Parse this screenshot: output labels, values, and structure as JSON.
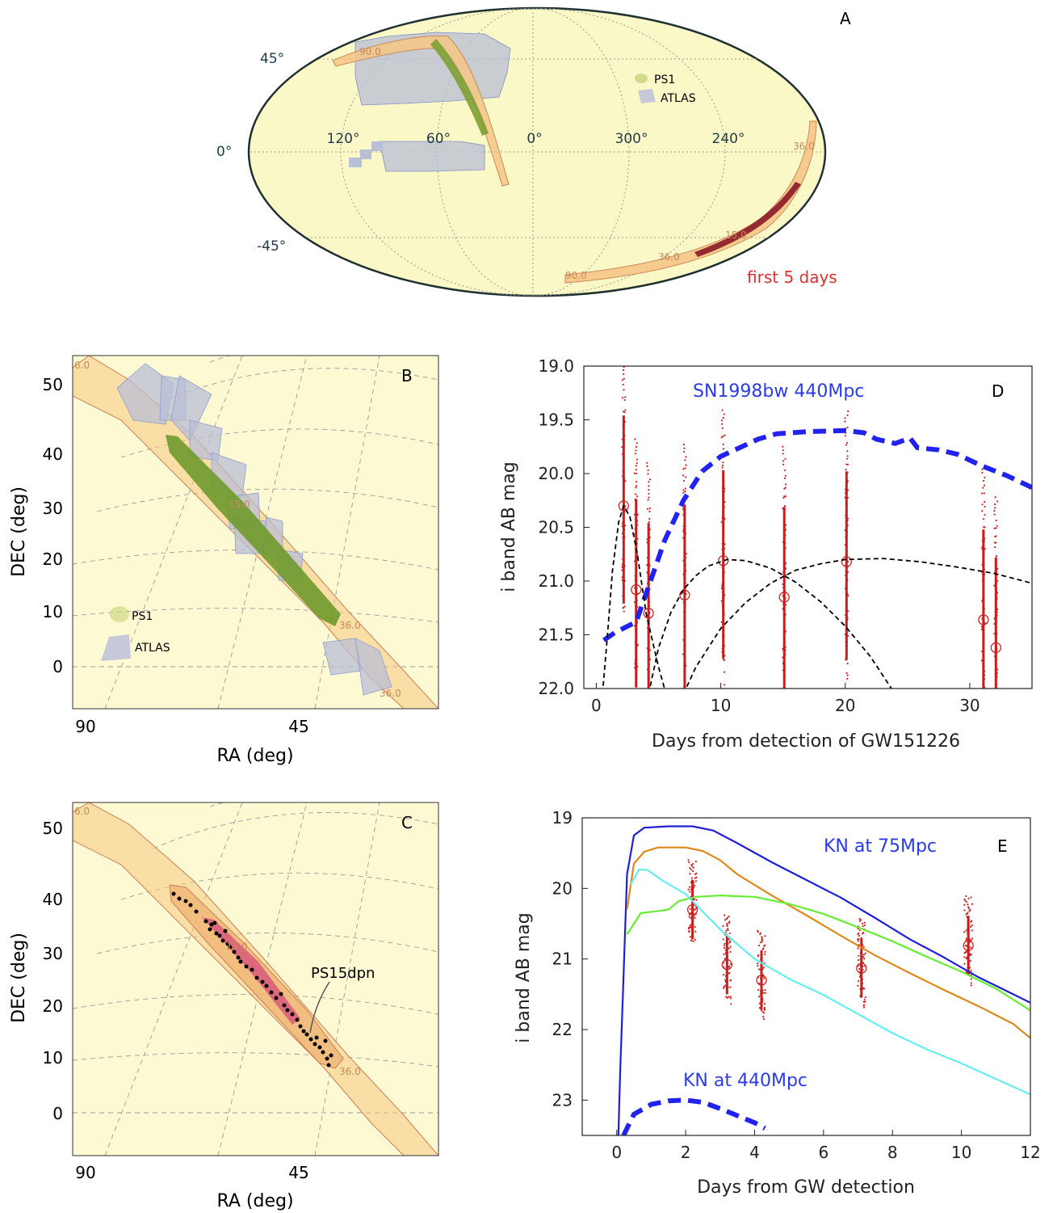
{
  "chart_data": [
    {
      "panel": "A",
      "type": "map",
      "projection": "mollweide",
      "lat_labels": [
        "45°",
        "0°",
        "-45°"
      ],
      "lon_labels": [
        "120°",
        "60°",
        "0°",
        "300°",
        "240°"
      ],
      "legend": [
        "PS1",
        "ATLAS"
      ],
      "annotation": "first 5 days",
      "contour_labels": [
        "90.0",
        "90.0",
        "36.0",
        "15.0",
        "36.0"
      ]
    },
    {
      "panel": "B",
      "type": "map",
      "xlabel": "RA (deg)",
      "ylabel": "DEC (deg)",
      "x_ticks": [
        "90",
        "45"
      ],
      "y_ticks": [
        "50",
        "40",
        "30",
        "20",
        "10",
        "0"
      ],
      "ylim": [
        -7,
        55
      ],
      "legend": [
        "PS1",
        "ATLAS"
      ],
      "contour_labels": [
        "6.0",
        "36.0",
        "15.0",
        "36.0"
      ]
    },
    {
      "panel": "C",
      "type": "map",
      "xlabel": "RA (deg)",
      "ylabel": "DEC (deg)",
      "x_ticks": [
        "90",
        "45"
      ],
      "y_ticks": [
        "50",
        "40",
        "30",
        "20",
        "10",
        "0"
      ],
      "ylim": [
        -7,
        55
      ],
      "annotation": "PS15dpn",
      "contour_labels": [
        "6.0",
        "36.0",
        "15.0"
      ]
    },
    {
      "panel": "D",
      "type": "line",
      "xlabel": "Days from detection of GW151226",
      "ylabel": "i band AB mag",
      "xlim": [
        -1,
        35
      ],
      "ylim": [
        22.0,
        19.0
      ],
      "x_ticks": [
        0,
        10,
        20,
        30
      ],
      "y_ticks": [
        "19.0",
        "19.5",
        "20.0",
        "20.5",
        "21.0",
        "21.5",
        "22.0"
      ],
      "series": [
        {
          "name": "SN1998bw 440Mpc",
          "style": "thick-dashed",
          "color": "#2222ee",
          "points": [
            [
              0.6,
              21.55
            ],
            [
              1.5,
              21.48
            ],
            [
              3.2,
              21.38
            ],
            [
              4.2,
              21.05
            ],
            [
              5.5,
              20.62
            ],
            [
              7,
              20.25
            ],
            [
              8.5,
              19.98
            ],
            [
              10,
              19.84
            ],
            [
              11.5,
              19.76
            ],
            [
              13,
              19.68
            ],
            [
              14.5,
              19.63
            ],
            [
              17,
              19.61
            ],
            [
              20,
              19.6
            ],
            [
              21.5,
              19.62
            ],
            [
              22.5,
              19.68
            ],
            [
              24,
              19.72
            ],
            [
              25.2,
              19.67
            ],
            [
              25.8,
              19.76
            ],
            [
              27.5,
              19.78
            ],
            [
              29,
              19.82
            ],
            [
              31,
              19.93
            ],
            [
              33,
              20.02
            ],
            [
              35,
              20.13
            ]
          ]
        },
        {
          "name": "",
          "style": "dashed",
          "color": "#000000",
          "points": [
            [
              0.5,
              22.05
            ],
            [
              0.9,
              21.5
            ],
            [
              1.3,
              20.9
            ],
            [
              1.8,
              20.45
            ],
            [
              2.2,
              20.3
            ],
            [
              2.7,
              20.4
            ],
            [
              3.3,
              20.75
            ],
            [
              4,
              21.3
            ],
            [
              5,
              21.8
            ],
            [
              5.6,
              22.05
            ]
          ]
        },
        {
          "name": "",
          "style": "dashed",
          "color": "#000000",
          "points": [
            [
              4.2,
              22.05
            ],
            [
              5,
              21.62
            ],
            [
              6,
              21.29
            ],
            [
              7,
              21.08
            ],
            [
              8,
              20.95
            ],
            [
              9,
              20.86
            ],
            [
              10.5,
              20.8
            ],
            [
              12,
              20.81
            ],
            [
              14,
              20.88
            ],
            [
              16,
              21.01
            ],
            [
              18,
              21.19
            ],
            [
              20,
              21.42
            ],
            [
              22,
              21.7
            ],
            [
              24,
              22.05
            ]
          ]
        },
        {
          "name": "",
          "style": "dashed",
          "color": "#000000",
          "points": [
            [
              7,
              22.05
            ],
            [
              8,
              21.8
            ],
            [
              10,
              21.44
            ],
            [
              12,
              21.2
            ],
            [
              14,
              21.02
            ],
            [
              16,
              20.9
            ],
            [
              18,
              20.84
            ],
            [
              20,
              20.8
            ],
            [
              23,
              20.79
            ],
            [
              26,
              20.82
            ],
            [
              29,
              20.87
            ],
            [
              32,
              20.93
            ],
            [
              35,
              21.02
            ]
          ]
        }
      ],
      "observations": [
        {
          "day": 2.2,
          "mag": 20.3
        },
        {
          "day": 3.2,
          "mag": 21.08
        },
        {
          "day": 4.2,
          "mag": 21.3
        },
        {
          "day": 7.1,
          "mag": 21.13
        },
        {
          "day": 10.2,
          "mag": 20.81
        },
        {
          "day": 15.1,
          "mag": 21.15
        },
        {
          "day": 20.1,
          "mag": 20.82
        },
        {
          "day": 31.1,
          "mag": 21.36
        },
        {
          "day": 32.1,
          "mag": 21.62
        }
      ],
      "annotation": "SN1998bw 440Mpc"
    },
    {
      "panel": "E",
      "type": "line",
      "xlabel": "Days from GW detection",
      "ylabel": "i band AB mag",
      "xlim": [
        -1,
        12
      ],
      "ylim": [
        23.5,
        19.0
      ],
      "x_ticks": [
        0,
        2,
        4,
        6,
        8,
        10,
        12
      ],
      "y_ticks": [
        "19",
        "20",
        "21",
        "22",
        "23"
      ],
      "series": [
        {
          "name": "KN at 75Mpc",
          "style": "solid",
          "color": "#1f1fd6",
          "points": [
            [
              0.05,
              23.5
            ],
            [
              0.1,
              22.6
            ],
            [
              0.18,
              21.5
            ],
            [
              0.3,
              19.8
            ],
            [
              0.5,
              19.25
            ],
            [
              0.8,
              19.14
            ],
            [
              1.5,
              19.12
            ],
            [
              2.2,
              19.12
            ],
            [
              2.8,
              19.18
            ],
            [
              3.5,
              19.36
            ],
            [
              4.5,
              19.63
            ],
            [
              5.5,
              19.88
            ],
            [
              6.5,
              20.13
            ],
            [
              7.5,
              20.42
            ],
            [
              8.5,
              20.72
            ],
            [
              9.5,
              20.98
            ],
            [
              10.5,
              21.26
            ],
            [
              11.5,
              21.5
            ],
            [
              12,
              21.62
            ]
          ]
        },
        {
          "name": "",
          "style": "solid",
          "color": "#dd8a1a",
          "points": [
            [
              0.3,
              20.3
            ],
            [
              0.5,
              19.65
            ],
            [
              0.8,
              19.48
            ],
            [
              1.2,
              19.42
            ],
            [
              2,
              19.42
            ],
            [
              2.5,
              19.47
            ],
            [
              3,
              19.6
            ],
            [
              3.5,
              19.8
            ],
            [
              4.5,
              20.1
            ],
            [
              5.5,
              20.38
            ],
            [
              6.5,
              20.67
            ],
            [
              7.5,
              20.95
            ],
            [
              8.5,
              21.2
            ],
            [
              9.5,
              21.44
            ],
            [
              10.5,
              21.67
            ],
            [
              11.5,
              21.92
            ],
            [
              12,
              22.12
            ]
          ]
        },
        {
          "name": "",
          "style": "solid",
          "color": "#66ee33",
          "points": [
            [
              0.3,
              20.65
            ],
            [
              0.7,
              20.35
            ],
            [
              1.2,
              20.32
            ],
            [
              1.5,
              20.3
            ],
            [
              1.8,
              20.18
            ],
            [
              2.3,
              20.12
            ],
            [
              3,
              20.1
            ],
            [
              4,
              20.12
            ],
            [
              5,
              20.22
            ],
            [
              6,
              20.36
            ],
            [
              7,
              20.55
            ],
            [
              8,
              20.75
            ],
            [
              9,
              20.97
            ],
            [
              10,
              21.18
            ],
            [
              11,
              21.42
            ],
            [
              12,
              21.73
            ]
          ]
        },
        {
          "name": "",
          "style": "solid",
          "color": "#66eeee",
          "points": [
            [
              0.4,
              19.95
            ],
            [
              0.65,
              19.73
            ],
            [
              0.9,
              19.74
            ],
            [
              1.3,
              19.88
            ],
            [
              2,
              20.08
            ],
            [
              3,
              20.58
            ],
            [
              4,
              21.0
            ],
            [
              5,
              21.28
            ],
            [
              6,
              21.51
            ],
            [
              7,
              21.78
            ],
            [
              8,
              22.05
            ],
            [
              9,
              22.28
            ],
            [
              10,
              22.48
            ],
            [
              11,
              22.7
            ],
            [
              12,
              22.92
            ]
          ]
        },
        {
          "name": "KN at 440Mpc",
          "style": "thick-dashed",
          "color": "#2222ee",
          "points": [
            [
              0.2,
              23.5
            ],
            [
              0.5,
              23.2
            ],
            [
              1,
              23.06
            ],
            [
              1.5,
              23.01
            ],
            [
              2,
              23.0
            ],
            [
              2.5,
              23.03
            ],
            [
              3,
              23.12
            ],
            [
              3.5,
              23.22
            ],
            [
              4,
              23.32
            ],
            [
              4.3,
              23.4
            ]
          ]
        }
      ],
      "observations": [
        {
          "day": 2.2,
          "mag": 20.3
        },
        {
          "day": 3.2,
          "mag": 21.08
        },
        {
          "day": 4.2,
          "mag": 21.3
        },
        {
          "day": 7.1,
          "mag": 21.13
        },
        {
          "day": 10.2,
          "mag": 20.81
        }
      ],
      "annotations": [
        "KN at 75Mpc",
        "KN at 440Mpc"
      ]
    }
  ]
}
